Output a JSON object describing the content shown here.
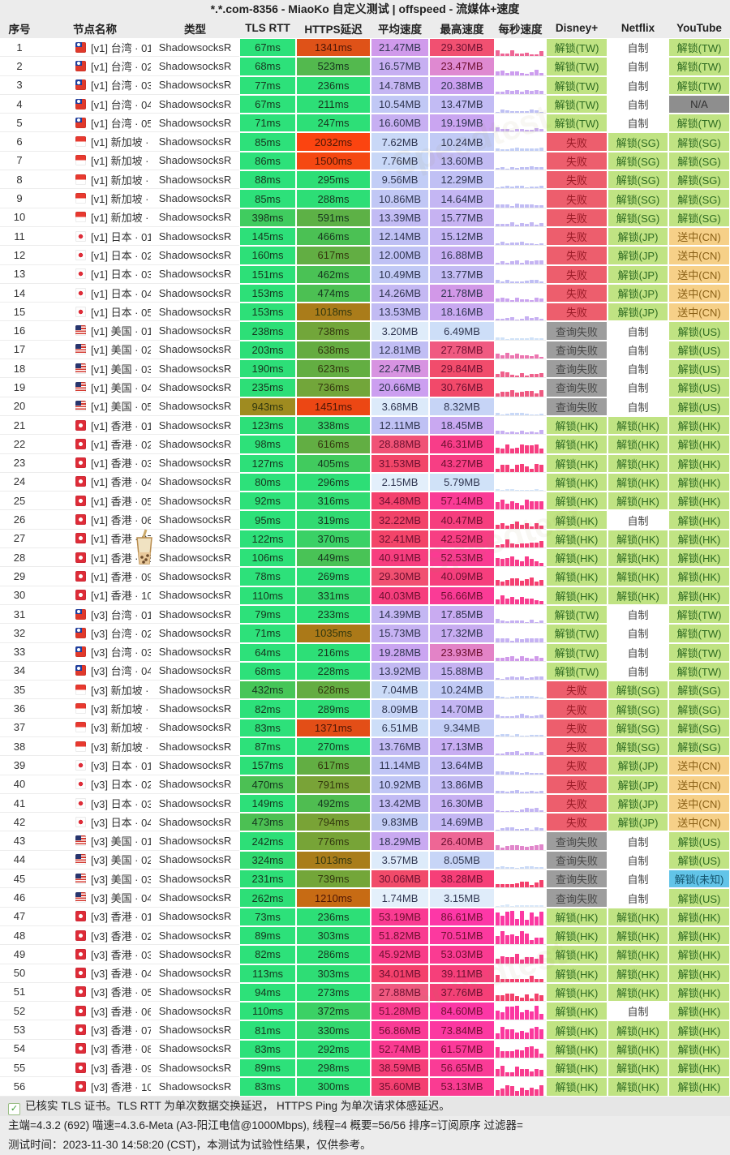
{
  "title": "*.*.com-8356 - MiaoKo 自定义测试 | offspeed - 流媒体+速度",
  "columns": [
    "序号",
    "节点名称",
    "类型",
    "TLS RTT",
    "HTTPS延迟",
    "平均速度",
    "最高速度",
    "每秒速度",
    "Disney+",
    "Netflix",
    "YouTube"
  ],
  "accent_colors": {
    "latency_good": "#2de27b",
    "latency_bad": "#fb4310",
    "speed_low": "#eaf5fc",
    "speed_mid": "#cc9ef0",
    "speed_high": "#fb3a9a",
    "status_unlock_bg": "#c0e383",
    "status_unlock_text": "#2e6b21",
    "status_fail_bg": "#ed5e6d",
    "status_fail_text": "#9b1b27",
    "status_queryfail_bg": "#9d9d9d",
    "status_na_bg": "#8e8e8e",
    "status_cn_bg": "#f6d088",
    "status_unknown_bg": "#62c4e8",
    "homemade_bg": "#ffffff"
  },
  "watermark": "Speedtest",
  "rows": [
    {
      "idx": "1",
      "flag": "tw",
      "name": "[v1] 台湾 · 01",
      "type": "ShadowsocksR",
      "tls": "67ms",
      "https": "1341ms",
      "avg": "21.47MB",
      "max": "29.30MB",
      "disney": "解锁(TW)",
      "netflix": "自制",
      "youtube": "解锁(TW)"
    },
    {
      "idx": "2",
      "flag": "tw",
      "name": "[v1] 台湾 · 02",
      "type": "ShadowsocksR",
      "tls": "68ms",
      "https": "523ms",
      "avg": "16.57MB",
      "max": "23.47MB",
      "disney": "解锁(TW)",
      "netflix": "自制",
      "youtube": "解锁(TW)"
    },
    {
      "idx": "3",
      "flag": "tw",
      "name": "[v1] 台湾 · 03",
      "type": "ShadowsocksR",
      "tls": "77ms",
      "https": "236ms",
      "avg": "14.78MB",
      "max": "20.38MB",
      "disney": "解锁(TW)",
      "netflix": "自制",
      "youtube": "解锁(TW)"
    },
    {
      "idx": "4",
      "flag": "tw",
      "name": "[v1] 台湾 · 04",
      "type": "ShadowsocksR",
      "tls": "67ms",
      "https": "211ms",
      "avg": "10.54MB",
      "max": "13.47MB",
      "disney": "解锁(TW)",
      "netflix": "自制",
      "youtube": "N/A"
    },
    {
      "idx": "5",
      "flag": "tw",
      "name": "[v1] 台湾 · 05",
      "type": "ShadowsocksR",
      "tls": "71ms",
      "https": "247ms",
      "avg": "16.60MB",
      "max": "19.19MB",
      "disney": "解锁(TW)",
      "netflix": "自制",
      "youtube": "解锁(TW)"
    },
    {
      "idx": "6",
      "flag": "sg",
      "name": "[v1] 新加坡 · 01",
      "type": "ShadowsocksR",
      "tls": "85ms",
      "https": "2032ms",
      "avg": "7.62MB",
      "max": "10.24MB",
      "disney": "失败",
      "netflix": "解锁(SG)",
      "youtube": "解锁(SG)"
    },
    {
      "idx": "7",
      "flag": "sg",
      "name": "[v1] 新加坡 · 02",
      "type": "ShadowsocksR",
      "tls": "86ms",
      "https": "1500ms",
      "avg": "7.76MB",
      "max": "13.60MB",
      "disney": "失败",
      "netflix": "解锁(SG)",
      "youtube": "解锁(SG)"
    },
    {
      "idx": "8",
      "flag": "sg",
      "name": "[v1] 新加坡 · 03",
      "type": "ShadowsocksR",
      "tls": "88ms",
      "https": "295ms",
      "avg": "9.56MB",
      "max": "12.29MB",
      "disney": "失败",
      "netflix": "解锁(SG)",
      "youtube": "解锁(SG)"
    },
    {
      "idx": "9",
      "flag": "sg",
      "name": "[v1] 新加坡 · 04",
      "type": "ShadowsocksR",
      "tls": "85ms",
      "https": "288ms",
      "avg": "10.86MB",
      "max": "14.64MB",
      "disney": "失败",
      "netflix": "解锁(SG)",
      "youtube": "解锁(SG)"
    },
    {
      "idx": "10",
      "flag": "sg",
      "name": "[v1] 新加坡 · 05",
      "type": "ShadowsocksR",
      "tls": "398ms",
      "https": "591ms",
      "avg": "13.39MB",
      "max": "15.77MB",
      "disney": "失败",
      "netflix": "解锁(SG)",
      "youtube": "解锁(SG)"
    },
    {
      "idx": "11",
      "flag": "jp",
      "name": "[v1] 日本 · 01",
      "type": "ShadowsocksR",
      "tls": "145ms",
      "https": "466ms",
      "avg": "12.14MB",
      "max": "15.12MB",
      "disney": "失败",
      "netflix": "解锁(JP)",
      "youtube": "送中(CN)"
    },
    {
      "idx": "12",
      "flag": "jp",
      "name": "[v1] 日本 · 02",
      "type": "ShadowsocksR",
      "tls": "160ms",
      "https": "617ms",
      "avg": "12.00MB",
      "max": "16.88MB",
      "disney": "失败",
      "netflix": "解锁(JP)",
      "youtube": "送中(CN)"
    },
    {
      "idx": "13",
      "flag": "jp",
      "name": "[v1] 日本 · 03",
      "type": "ShadowsocksR",
      "tls": "151ms",
      "https": "462ms",
      "avg": "10.49MB",
      "max": "13.77MB",
      "disney": "失败",
      "netflix": "解锁(JP)",
      "youtube": "送中(CN)"
    },
    {
      "idx": "14",
      "flag": "jp",
      "name": "[v1] 日本 · 04",
      "type": "ShadowsocksR",
      "tls": "153ms",
      "https": "474ms",
      "avg": "14.26MB",
      "max": "21.78MB",
      "disney": "失败",
      "netflix": "解锁(JP)",
      "youtube": "送中(CN)"
    },
    {
      "idx": "15",
      "flag": "jp",
      "name": "[v1] 日本 · 05",
      "type": "ShadowsocksR",
      "tls": "153ms",
      "https": "1018ms",
      "avg": "13.53MB",
      "max": "18.16MB",
      "disney": "失败",
      "netflix": "解锁(JP)",
      "youtube": "送中(CN)"
    },
    {
      "idx": "16",
      "flag": "us",
      "name": "[v1] 美国 · 01",
      "type": "ShadowsocksR",
      "tls": "238ms",
      "https": "738ms",
      "avg": "3.20MB",
      "max": "6.49MB",
      "disney": "查询失败",
      "netflix": "自制",
      "youtube": "解锁(US)"
    },
    {
      "idx": "17",
      "flag": "us",
      "name": "[v1] 美国 · 02",
      "type": "ShadowsocksR",
      "tls": "203ms",
      "https": "638ms",
      "avg": "12.81MB",
      "max": "27.78MB",
      "disney": "查询失败",
      "netflix": "自制",
      "youtube": "解锁(US)"
    },
    {
      "idx": "18",
      "flag": "us",
      "name": "[v1] 美国 · 03",
      "type": "ShadowsocksR",
      "tls": "190ms",
      "https": "623ms",
      "avg": "22.47MB",
      "max": "29.84MB",
      "disney": "查询失败",
      "netflix": "自制",
      "youtube": "解锁(US)"
    },
    {
      "idx": "19",
      "flag": "us",
      "name": "[v1] 美国 · 04",
      "type": "ShadowsocksR",
      "tls": "235ms",
      "https": "736ms",
      "avg": "20.66MB",
      "max": "30.76MB",
      "disney": "查询失败",
      "netflix": "自制",
      "youtube": "解锁(US)"
    },
    {
      "idx": "20",
      "flag": "us",
      "name": "[v1] 美国 · 05",
      "type": "ShadowsocksR",
      "tls": "943ms",
      "https": "1451ms",
      "avg": "3.68MB",
      "max": "8.32MB",
      "disney": "查询失败",
      "netflix": "自制",
      "youtube": "解锁(US)"
    },
    {
      "idx": "21",
      "flag": "hk",
      "name": "[v1] 香港 · 01",
      "type": "ShadowsocksR",
      "tls": "123ms",
      "https": "338ms",
      "avg": "12.11MB",
      "max": "18.45MB",
      "disney": "解锁(HK)",
      "netflix": "解锁(HK)",
      "youtube": "解锁(HK)"
    },
    {
      "idx": "22",
      "flag": "hk",
      "name": "[v1] 香港 · 02",
      "type": "ShadowsocksR",
      "tls": "98ms",
      "https": "616ms",
      "avg": "28.88MB",
      "max": "46.31MB",
      "disney": "解锁(HK)",
      "netflix": "解锁(HK)",
      "youtube": "解锁(HK)"
    },
    {
      "idx": "23",
      "flag": "hk",
      "name": "[v1] 香港 · 03",
      "type": "ShadowsocksR",
      "tls": "127ms",
      "https": "405ms",
      "avg": "31.53MB",
      "max": "43.27MB",
      "disney": "解锁(HK)",
      "netflix": "解锁(HK)",
      "youtube": "解锁(HK)"
    },
    {
      "idx": "24",
      "flag": "hk",
      "name": "[v1] 香港 · 04",
      "type": "ShadowsocksR",
      "tls": "80ms",
      "https": "296ms",
      "avg": "2.15MB",
      "max": "5.79MB",
      "disney": "解锁(HK)",
      "netflix": "解锁(HK)",
      "youtube": "解锁(HK)"
    },
    {
      "idx": "25",
      "flag": "hk",
      "name": "[v1] 香港 · 05",
      "type": "ShadowsocksR",
      "tls": "92ms",
      "https": "316ms",
      "avg": "34.48MB",
      "max": "57.14MB",
      "disney": "解锁(HK)",
      "netflix": "解锁(HK)",
      "youtube": "解锁(HK)"
    },
    {
      "idx": "26",
      "flag": "hk",
      "name": "[v1] 香港 · 06",
      "type": "ShadowsocksR",
      "tls": "95ms",
      "https": "319ms",
      "avg": "32.22MB",
      "max": "40.47MB",
      "disney": "解锁(HK)",
      "netflix": "自制",
      "youtube": "解锁(HK)"
    },
    {
      "idx": "27",
      "flag": "hk",
      "name": "[v1] 香港 · 07",
      "type": "ShadowsocksR",
      "tls": "122ms",
      "https": "370ms",
      "avg": "32.41MB",
      "max": "42.52MB",
      "disney": "解锁(HK)",
      "netflix": "解锁(HK)",
      "youtube": "解锁(HK)"
    },
    {
      "idx": "28",
      "flag": "hk",
      "name": "[v1] 香港 · 08",
      "type": "ShadowsocksR",
      "tls": "106ms",
      "https": "449ms",
      "avg": "40.91MB",
      "max": "52.53MB",
      "disney": "解锁(HK)",
      "netflix": "解锁(HK)",
      "youtube": "解锁(HK)"
    },
    {
      "idx": "29",
      "flag": "hk",
      "name": "[v1] 香港 · 09",
      "type": "ShadowsocksR",
      "tls": "78ms",
      "https": "269ms",
      "avg": "29.30MB",
      "max": "40.09MB",
      "disney": "解锁(HK)",
      "netflix": "解锁(HK)",
      "youtube": "解锁(HK)"
    },
    {
      "idx": "30",
      "flag": "hk",
      "name": "[v1] 香港 · 10",
      "type": "ShadowsocksR",
      "tls": "110ms",
      "https": "331ms",
      "avg": "40.03MB",
      "max": "56.66MB",
      "disney": "解锁(HK)",
      "netflix": "解锁(HK)",
      "youtube": "解锁(HK)"
    },
    {
      "idx": "31",
      "flag": "tw",
      "name": "[v3] 台湾 · 01",
      "type": "ShadowsocksR",
      "tls": "79ms",
      "https": "233ms",
      "avg": "14.39MB",
      "max": "17.85MB",
      "disney": "解锁(TW)",
      "netflix": "自制",
      "youtube": "解锁(TW)"
    },
    {
      "idx": "32",
      "flag": "tw",
      "name": "[v3] 台湾 · 02",
      "type": "ShadowsocksR",
      "tls": "71ms",
      "https": "1035ms",
      "avg": "15.73MB",
      "max": "17.32MB",
      "disney": "解锁(TW)",
      "netflix": "自制",
      "youtube": "解锁(TW)"
    },
    {
      "idx": "33",
      "flag": "tw",
      "name": "[v3] 台湾 · 03",
      "type": "ShadowsocksR",
      "tls": "64ms",
      "https": "216ms",
      "avg": "19.28MB",
      "max": "23.93MB",
      "disney": "解锁(TW)",
      "netflix": "自制",
      "youtube": "解锁(TW)"
    },
    {
      "idx": "34",
      "flag": "tw",
      "name": "[v3] 台湾 · 04",
      "type": "ShadowsocksR",
      "tls": "68ms",
      "https": "228ms",
      "avg": "13.92MB",
      "max": "15.88MB",
      "disney": "解锁(TW)",
      "netflix": "自制",
      "youtube": "解锁(TW)"
    },
    {
      "idx": "35",
      "flag": "sg",
      "name": "[v3] 新加坡 · 01",
      "type": "ShadowsocksR",
      "tls": "432ms",
      "https": "628ms",
      "avg": "7.04MB",
      "max": "10.24MB",
      "disney": "失败",
      "netflix": "解锁(SG)",
      "youtube": "解锁(SG)"
    },
    {
      "idx": "36",
      "flag": "sg",
      "name": "[v3] 新加坡 · 02",
      "type": "ShadowsocksR",
      "tls": "82ms",
      "https": "289ms",
      "avg": "8.09MB",
      "max": "14.70MB",
      "disney": "失败",
      "netflix": "解锁(SG)",
      "youtube": "解锁(SG)"
    },
    {
      "idx": "37",
      "flag": "sg",
      "name": "[v3] 新加坡 · 03",
      "type": "ShadowsocksR",
      "tls": "83ms",
      "https": "1371ms",
      "avg": "6.51MB",
      "max": "9.34MB",
      "disney": "失败",
      "netflix": "解锁(SG)",
      "youtube": "解锁(SG)"
    },
    {
      "idx": "38",
      "flag": "sg",
      "name": "[v3] 新加坡 · 04",
      "type": "ShadowsocksR",
      "tls": "87ms",
      "https": "270ms",
      "avg": "13.76MB",
      "max": "17.13MB",
      "disney": "失败",
      "netflix": "解锁(SG)",
      "youtube": "解锁(SG)"
    },
    {
      "idx": "39",
      "flag": "jp",
      "name": "[v3] 日本 · 01",
      "type": "ShadowsocksR",
      "tls": "157ms",
      "https": "617ms",
      "avg": "11.14MB",
      "max": "13.64MB",
      "disney": "失败",
      "netflix": "解锁(JP)",
      "youtube": "送中(CN)"
    },
    {
      "idx": "40",
      "flag": "jp",
      "name": "[v3] 日本 · 02",
      "type": "ShadowsocksR",
      "tls": "470ms",
      "https": "791ms",
      "avg": "10.92MB",
      "max": "13.86MB",
      "disney": "失败",
      "netflix": "解锁(JP)",
      "youtube": "送中(CN)"
    },
    {
      "idx": "41",
      "flag": "jp",
      "name": "[v3] 日本 · 03",
      "type": "ShadowsocksR",
      "tls": "149ms",
      "https": "492ms",
      "avg": "13.42MB",
      "max": "16.30MB",
      "disney": "失败",
      "netflix": "解锁(JP)",
      "youtube": "送中(CN)"
    },
    {
      "idx": "42",
      "flag": "jp",
      "name": "[v3] 日本 · 04",
      "type": "ShadowsocksR",
      "tls": "473ms",
      "https": "794ms",
      "avg": "9.83MB",
      "max": "14.69MB",
      "disney": "失败",
      "netflix": "解锁(JP)",
      "youtube": "送中(CN)"
    },
    {
      "idx": "43",
      "flag": "us",
      "name": "[v3] 美国 · 01",
      "type": "ShadowsocksR",
      "tls": "242ms",
      "https": "776ms",
      "avg": "18.29MB",
      "max": "26.40MB",
      "disney": "查询失败",
      "netflix": "自制",
      "youtube": "解锁(US)"
    },
    {
      "idx": "44",
      "flag": "us",
      "name": "[v3] 美国 · 02",
      "type": "ShadowsocksR",
      "tls": "324ms",
      "https": "1013ms",
      "avg": "3.57MB",
      "max": "8.05MB",
      "disney": "查询失败",
      "netflix": "自制",
      "youtube": "解锁(US)"
    },
    {
      "idx": "45",
      "flag": "us",
      "name": "[v3] 美国 · 03",
      "type": "ShadowsocksR",
      "tls": "231ms",
      "https": "739ms",
      "avg": "30.06MB",
      "max": "38.28MB",
      "disney": "查询失败",
      "netflix": "自制",
      "youtube": "解锁(未知)"
    },
    {
      "idx": "46",
      "flag": "us",
      "name": "[v3] 美国 · 04",
      "type": "ShadowsocksR",
      "tls": "262ms",
      "https": "1210ms",
      "avg": "1.74MB",
      "max": "3.15MB",
      "disney": "查询失败",
      "netflix": "自制",
      "youtube": "解锁(US)"
    },
    {
      "idx": "47",
      "flag": "hk",
      "name": "[v3] 香港 · 01",
      "type": "ShadowsocksR",
      "tls": "73ms",
      "https": "236ms",
      "avg": "53.19MB",
      "max": "86.61MB",
      "disney": "解锁(HK)",
      "netflix": "解锁(HK)",
      "youtube": "解锁(HK)"
    },
    {
      "idx": "48",
      "flag": "hk",
      "name": "[v3] 香港 · 02",
      "type": "ShadowsocksR",
      "tls": "89ms",
      "https": "303ms",
      "avg": "51.82MB",
      "max": "70.51MB",
      "disney": "解锁(HK)",
      "netflix": "解锁(HK)",
      "youtube": "解锁(HK)"
    },
    {
      "idx": "49",
      "flag": "hk",
      "name": "[v3] 香港 · 03",
      "type": "ShadowsocksR",
      "tls": "82ms",
      "https": "286ms",
      "avg": "45.92MB",
      "max": "53.03MB",
      "disney": "解锁(HK)",
      "netflix": "解锁(HK)",
      "youtube": "解锁(HK)"
    },
    {
      "idx": "50",
      "flag": "hk",
      "name": "[v3] 香港 · 04",
      "type": "ShadowsocksR",
      "tls": "113ms",
      "https": "303ms",
      "avg": "34.01MB",
      "max": "39.11MB",
      "disney": "解锁(HK)",
      "netflix": "解锁(HK)",
      "youtube": "解锁(HK)"
    },
    {
      "idx": "51",
      "flag": "hk",
      "name": "[v3] 香港 · 05",
      "type": "ShadowsocksR",
      "tls": "94ms",
      "https": "273ms",
      "avg": "27.88MB",
      "max": "37.76MB",
      "disney": "解锁(HK)",
      "netflix": "解锁(HK)",
      "youtube": "解锁(HK)"
    },
    {
      "idx": "52",
      "flag": "hk",
      "name": "[v3] 香港 · 06",
      "type": "ShadowsocksR",
      "tls": "110ms",
      "https": "372ms",
      "avg": "51.28MB",
      "max": "84.60MB",
      "disney": "解锁(HK)",
      "netflix": "自制",
      "youtube": "解锁(HK)"
    },
    {
      "idx": "53",
      "flag": "hk",
      "name": "[v3] 香港 · 07",
      "type": "ShadowsocksR",
      "tls": "81ms",
      "https": "330ms",
      "avg": "56.86MB",
      "max": "73.84MB",
      "disney": "解锁(HK)",
      "netflix": "解锁(HK)",
      "youtube": "解锁(HK)"
    },
    {
      "idx": "54",
      "flag": "hk",
      "name": "[v3] 香港 · 08",
      "type": "ShadowsocksR",
      "tls": "83ms",
      "https": "292ms",
      "avg": "52.74MB",
      "max": "61.57MB",
      "disney": "解锁(HK)",
      "netflix": "解锁(HK)",
      "youtube": "解锁(HK)"
    },
    {
      "idx": "55",
      "flag": "hk",
      "name": "[v3] 香港 · 09",
      "type": "ShadowsocksR",
      "tls": "89ms",
      "https": "298ms",
      "avg": "38.59MB",
      "max": "56.65MB",
      "disney": "解锁(HK)",
      "netflix": "解锁(HK)",
      "youtube": "解锁(HK)"
    },
    {
      "idx": "56",
      "flag": "hk",
      "name": "[v3] 香港 · 10",
      "type": "ShadowsocksR",
      "tls": "83ms",
      "https": "300ms",
      "avg": "35.60MB",
      "max": "53.13MB",
      "disney": "解锁(HK)",
      "netflix": "解锁(HK)",
      "youtube": "解锁(HK)"
    }
  ],
  "footer": {
    "line1": "已核实 TLS 证书。TLS RTT 为单次数据交换延迟， HTTPS Ping 为单次请求体感延迟。",
    "line2": "主端=4.3.2 (692) 喵速=4.3.6-Meta (A3-阳江电信@1000Mbps), 线程=4 概要=56/56 排序=订阅原序 过滤器=",
    "line3": "测试时间：2023-11-30 14:58:20 (CST)，本测试为试验性结果，仅供参考。"
  }
}
